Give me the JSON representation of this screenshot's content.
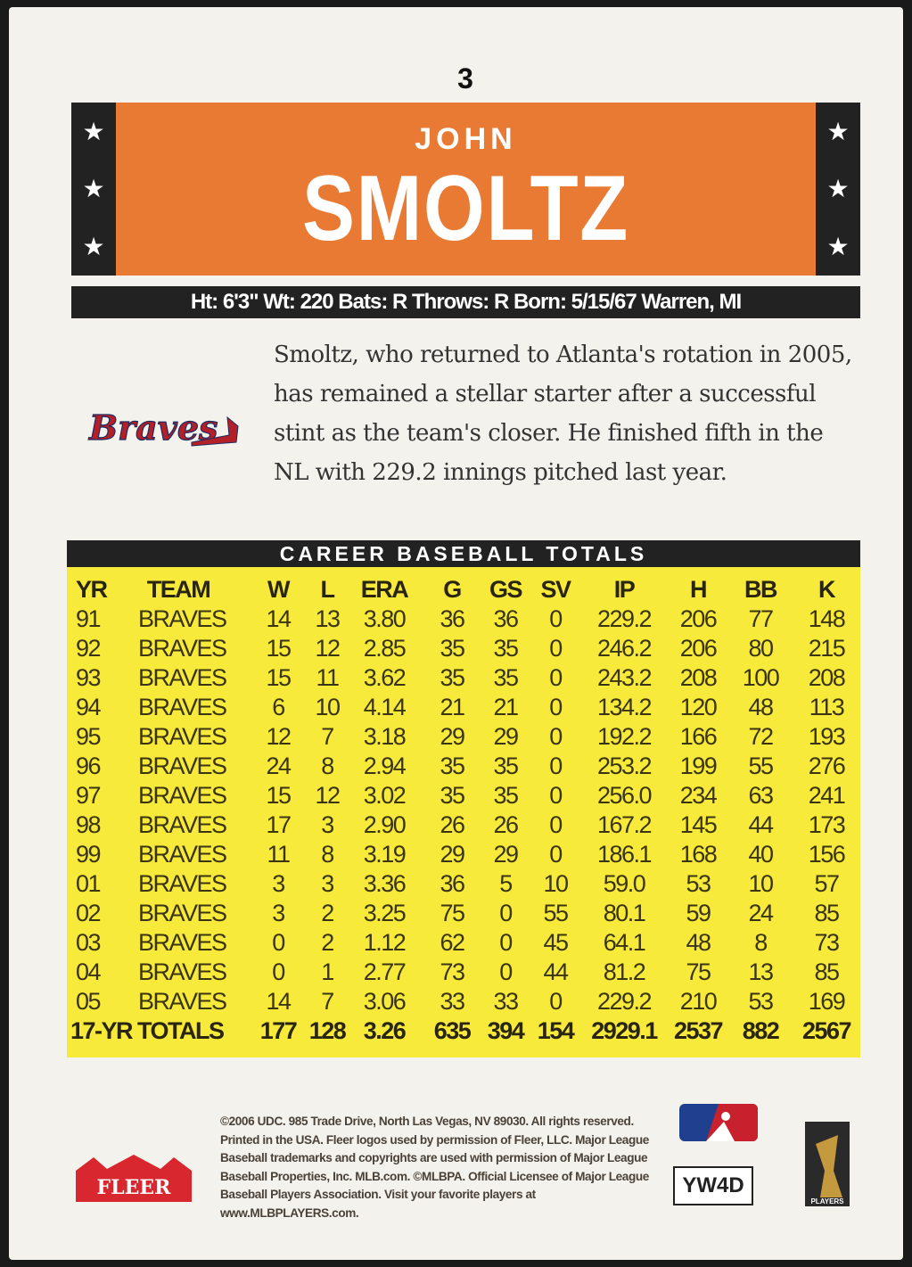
{
  "card": {
    "number": "3",
    "first_name": "JOHN",
    "last_name": "SMOLTZ",
    "info": "Ht: 6'3\" Wt: 220 Bats: R Throws: R Born: 5/15/67 Warren, MI",
    "bio": "Smoltz, who returned to Atlanta's rotation in 2005, has remained a stellar starter after a successful stint as the team's closer. He finished fifth in the NL with 229.2 innings pitched last year.",
    "team_logo": "Braves",
    "banner_color": "#e97a33",
    "table_color": "#f7ea3a"
  },
  "stats": {
    "title": "CAREER BASEBALL TOTALS",
    "columns": [
      "YR",
      "TEAM",
      "W",
      "L",
      "ERA",
      "G",
      "GS",
      "SV",
      "IP",
      "H",
      "BB",
      "K"
    ],
    "rows": [
      [
        "91",
        "BRAVES",
        "14",
        "13",
        "3.80",
        "36",
        "36",
        "0",
        "229.2",
        "206",
        "77",
        "148"
      ],
      [
        "92",
        "BRAVES",
        "15",
        "12",
        "2.85",
        "35",
        "35",
        "0",
        "246.2",
        "206",
        "80",
        "215"
      ],
      [
        "93",
        "BRAVES",
        "15",
        "11",
        "3.62",
        "35",
        "35",
        "0",
        "243.2",
        "208",
        "100",
        "208"
      ],
      [
        "94",
        "BRAVES",
        "6",
        "10",
        "4.14",
        "21",
        "21",
        "0",
        "134.2",
        "120",
        "48",
        "113"
      ],
      [
        "95",
        "BRAVES",
        "12",
        "7",
        "3.18",
        "29",
        "29",
        "0",
        "192.2",
        "166",
        "72",
        "193"
      ],
      [
        "96",
        "BRAVES",
        "24",
        "8",
        "2.94",
        "35",
        "35",
        "0",
        "253.2",
        "199",
        "55",
        "276"
      ],
      [
        "97",
        "BRAVES",
        "15",
        "12",
        "3.02",
        "35",
        "35",
        "0",
        "256.0",
        "234",
        "63",
        "241"
      ],
      [
        "98",
        "BRAVES",
        "17",
        "3",
        "2.90",
        "26",
        "26",
        "0",
        "167.2",
        "145",
        "44",
        "173"
      ],
      [
        "99",
        "BRAVES",
        "11",
        "8",
        "3.19",
        "29",
        "29",
        "0",
        "186.1",
        "168",
        "40",
        "156"
      ],
      [
        "01",
        "BRAVES",
        "3",
        "3",
        "3.36",
        "36",
        "5",
        "10",
        "59.0",
        "53",
        "10",
        "57"
      ],
      [
        "02",
        "BRAVES",
        "3",
        "2",
        "3.25",
        "75",
        "0",
        "55",
        "80.1",
        "59",
        "24",
        "85"
      ],
      [
        "03",
        "BRAVES",
        "0",
        "2",
        "1.12",
        "62",
        "0",
        "45",
        "64.1",
        "48",
        "8",
        "73"
      ],
      [
        "04",
        "BRAVES",
        "0",
        "1",
        "2.77",
        "73",
        "0",
        "44",
        "81.2",
        "75",
        "13",
        "85"
      ],
      [
        "05",
        "BRAVES",
        "14",
        "7",
        "3.06",
        "33",
        "33",
        "0",
        "229.2",
        "210",
        "53",
        "169"
      ]
    ],
    "totals": [
      "17-YR TOTALS",
      "177",
      "128",
      "3.26",
      "635",
      "394",
      "154",
      "2929.1",
      "2537",
      "882",
      "2567"
    ]
  },
  "footer": {
    "legal": "©2006 UDC. 985 Trade Drive, North Las Vegas, NV 89030. All rights reserved. Printed in the USA. Fleer logos used by permission of Fleer, LLC. Major League Baseball trademarks and copyrights are used with permission of Major League Baseball Properties, Inc. MLB.com. ©MLBPA. Official Licensee of Major League Baseball Players Association. Visit your favorite players at www.MLBPLAYERS.com.",
    "fleer_logo": "FLEER",
    "code": "YW4D",
    "mlbpa_logo": "PLAYERS"
  }
}
